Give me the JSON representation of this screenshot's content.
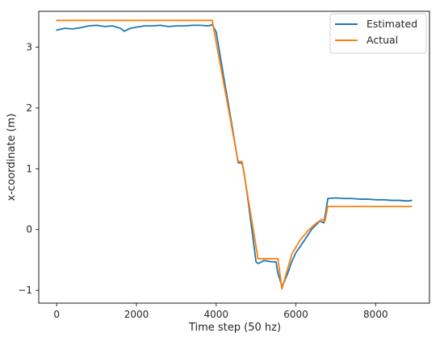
{
  "chart_data": {
    "type": "line",
    "xlabel": "Time step (50 hz)",
    "ylabel": "x-coordinate (m)",
    "xlim": [
      -450,
      9350
    ],
    "ylim": [
      -1.21,
      3.59
    ],
    "xticks": [
      0,
      2000,
      4000,
      6000,
      8000
    ],
    "yticks": [
      -1,
      0,
      1,
      2,
      3
    ],
    "grid": false,
    "legend_position": "top-right",
    "series": [
      {
        "name": "Estimated",
        "color": "#1f77b4",
        "x": [
          0,
          200,
          400,
          600,
          800,
          1000,
          1200,
          1400,
          1600,
          1700,
          1750,
          1850,
          2000,
          2200,
          2400,
          2600,
          2800,
          3000,
          3200,
          3400,
          3600,
          3800,
          3900,
          4000,
          4200,
          4400,
          4550,
          4650,
          4700,
          4800,
          5000,
          5050,
          5200,
          5400,
          5500,
          5550,
          5650,
          5700,
          5800,
          5900,
          6000,
          6200,
          6400,
          6600,
          6700,
          6750,
          6800,
          7000,
          7200,
          7400,
          7600,
          7800,
          8000,
          8200,
          8400,
          8600,
          8800,
          8900
        ],
        "y": [
          3.28,
          3.31,
          3.3,
          3.32,
          3.35,
          3.36,
          3.34,
          3.35,
          3.31,
          3.26,
          3.28,
          3.31,
          3.33,
          3.35,
          3.35,
          3.36,
          3.34,
          3.35,
          3.35,
          3.36,
          3.36,
          3.35,
          3.37,
          3.25,
          2.47,
          1.7,
          1.1,
          1.09,
          0.94,
          0.48,
          -0.53,
          -0.56,
          -0.51,
          -0.53,
          -0.53,
          -0.72,
          -0.93,
          -0.87,
          -0.71,
          -0.52,
          -0.38,
          -0.19,
          0.01,
          0.14,
          0.11,
          0.29,
          0.51,
          0.52,
          0.51,
          0.51,
          0.5,
          0.5,
          0.49,
          0.49,
          0.48,
          0.48,
          0.47,
          0.48
        ]
      },
      {
        "name": "Actual",
        "color": "#ff7f0e",
        "x": [
          0,
          3900,
          4550,
          4650,
          5050,
          5550,
          5650,
          5750,
          5900,
          6100,
          6300,
          6500,
          6650,
          6730,
          6800,
          8900
        ],
        "y": [
          3.44,
          3.44,
          1.12,
          1.12,
          -0.48,
          -0.48,
          -0.98,
          -0.74,
          -0.4,
          -0.18,
          -0.02,
          0.1,
          0.17,
          0.14,
          0.38,
          0.38
        ]
      }
    ]
  }
}
